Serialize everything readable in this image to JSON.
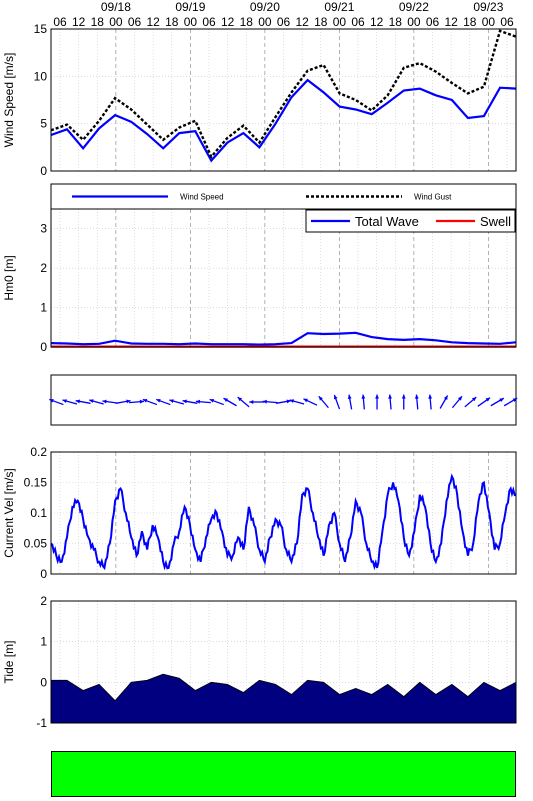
{
  "colors": {
    "wind_speed": "#0000ff",
    "wind_gust": "#000000",
    "total_wave": "#0000ff",
    "swell": "#ff0000",
    "current": "#0000ff",
    "arrow": "#0000ff",
    "tide_fill": "#000080",
    "status": "#00ff00",
    "grid": "#c8c8c8",
    "day_line": "#808080"
  },
  "time_axis": {
    "hour_ticks": [
      "06",
      "12",
      "18",
      "00",
      "06",
      "12",
      "18",
      "00",
      "06",
      "12",
      "18",
      "00",
      "06",
      "12",
      "18",
      "00",
      "06",
      "12",
      "18",
      "00",
      "06",
      "12",
      "18",
      "00",
      "06"
    ],
    "date_labels": [
      "09/18",
      "09/19",
      "09/20",
      "09/21",
      "09/22",
      "09/23"
    ]
  },
  "status": {
    "color": "#00ff00"
  },
  "chart_data": [
    {
      "id": "wind",
      "type": "line",
      "ylabel": "Wind Speed [m/s]",
      "ylim": [
        0,
        15
      ],
      "yticks": [
        "0",
        "5",
        "10",
        "15"
      ],
      "x": [
        0,
        6,
        12,
        18,
        24,
        30,
        36,
        42,
        48,
        54,
        60,
        66,
        72,
        78,
        84,
        90,
        96,
        102,
        108,
        114,
        120,
        126,
        132,
        138,
        144,
        150,
        156,
        162,
        168,
        174
      ],
      "series": [
        {
          "name": "Wind Speed",
          "values": [
            3.8,
            4.4,
            2.4,
            4.5,
            5.9,
            5.2,
            3.9,
            2.4,
            4.0,
            4.2,
            1.1,
            3.0,
            4.0,
            2.5,
            5.0,
            7.8,
            9.6,
            8.3,
            6.8,
            6.5,
            6.0,
            7.2,
            8.5,
            8.7,
            8.0,
            7.5,
            5.6,
            5.8,
            8.8,
            8.7
          ]
        },
        {
          "name": "Wind Gust",
          "values": [
            4.3,
            4.9,
            3.3,
            5.3,
            7.7,
            6.5,
            4.9,
            3.3,
            4.6,
            5.3,
            1.5,
            3.5,
            4.8,
            3.0,
            5.7,
            8.3,
            10.6,
            11.2,
            8.2,
            7.5,
            6.4,
            8.0,
            10.9,
            11.4,
            10.5,
            9.3,
            8.2,
            8.9,
            14.8,
            14.2
          ]
        }
      ],
      "legend": {
        "location": "below",
        "entries": [
          "Wind Speed",
          "Wind Gust"
        ]
      }
    },
    {
      "id": "wave",
      "type": "line",
      "ylabel": "Hm0 [m]",
      "ylim": [
        0,
        3.5
      ],
      "yticks": [
        "0",
        "1",
        "2",
        "3"
      ],
      "x": [
        0,
        6,
        12,
        18,
        24,
        30,
        36,
        42,
        48,
        54,
        60,
        66,
        72,
        78,
        84,
        90,
        96,
        102,
        108,
        114,
        120,
        126,
        132,
        138,
        144,
        150,
        156,
        162,
        168,
        174
      ],
      "series": [
        {
          "name": "Total Wave",
          "values": [
            0.1,
            0.09,
            0.07,
            0.08,
            0.16,
            0.09,
            0.08,
            0.08,
            0.07,
            0.09,
            0.07,
            0.07,
            0.07,
            0.06,
            0.07,
            0.1,
            0.35,
            0.33,
            0.34,
            0.36,
            0.25,
            0.2,
            0.18,
            0.2,
            0.17,
            0.12,
            0.1,
            0.09,
            0.08,
            0.12
          ]
        },
        {
          "name": "Swell",
          "values": [
            0.01,
            0.01,
            0.01,
            0.01,
            0.01,
            0.01,
            0.01,
            0.01,
            0.01,
            0.01,
            0.01,
            0.01,
            0.01,
            0.01,
            0.01,
            0.01,
            0.01,
            0.01,
            0.01,
            0.01,
            0.01,
            0.01,
            0.01,
            0.01,
            0.01,
            0.01,
            0.01,
            0.01,
            0.01,
            0.01
          ]
        }
      ],
      "legend": {
        "location": "top-right",
        "entries": [
          "Total Wave",
          "Swell"
        ]
      }
    },
    {
      "id": "direction",
      "type": "other",
      "x": [
        2,
        7,
        12,
        17,
        22,
        27,
        32,
        37,
        42,
        47,
        52,
        57,
        62,
        67,
        72,
        77,
        82,
        87,
        92,
        97,
        102,
        107,
        112,
        117,
        122,
        127,
        132,
        137,
        142,
        147,
        152,
        157,
        162,
        167,
        172
      ],
      "direction_deg": [
        160,
        165,
        170,
        165,
        172,
        10,
        5,
        160,
        160,
        165,
        170,
        175,
        160,
        150,
        140,
        180,
        175,
        10,
        165,
        155,
        130,
        110,
        100,
        95,
        90,
        95,
        90,
        95,
        95,
        60,
        50,
        40,
        35,
        30,
        30
      ]
    },
    {
      "id": "current",
      "type": "line",
      "ylabel": "Current Vel [m/s]",
      "ylim": [
        0,
        0.2
      ],
      "yticks": [
        "0",
        "0.05",
        "0.1",
        "0.15",
        "0.2"
      ],
      "x": [
        0,
        2,
        4,
        6,
        8,
        10,
        12,
        14,
        16,
        18,
        20,
        22,
        24,
        26,
        28,
        30,
        32,
        34,
        36,
        38,
        40,
        42,
        44,
        46,
        48,
        50,
        52,
        54,
        56,
        58,
        60,
        62,
        64,
        66,
        68,
        70,
        72,
        74,
        76,
        78,
        80,
        82,
        84,
        86,
        88,
        90,
        92,
        94,
        96,
        98,
        100,
        102,
        104,
        106,
        108,
        110,
        112,
        114,
        116,
        118,
        120,
        122,
        124,
        126,
        128,
        130,
        132,
        134,
        136,
        138,
        140,
        142,
        144,
        146,
        148,
        150,
        152,
        154,
        156,
        158,
        160,
        162,
        164,
        166,
        168,
        170,
        172,
        174
      ],
      "series": [
        {
          "name": "Current",
          "values": [
            0.05,
            0.03,
            0.02,
            0.06,
            0.11,
            0.12,
            0.09,
            0.06,
            0.04,
            0.02,
            0.01,
            0.05,
            0.12,
            0.14,
            0.1,
            0.06,
            0.03,
            0.07,
            0.04,
            0.08,
            0.06,
            0.02,
            0.01,
            0.05,
            0.07,
            0.11,
            0.08,
            0.04,
            0.02,
            0.06,
            0.09,
            0.1,
            0.07,
            0.03,
            0.03,
            0.06,
            0.04,
            0.11,
            0.08,
            0.04,
            0.02,
            0.06,
            0.09,
            0.08,
            0.04,
            0.02,
            0.05,
            0.13,
            0.14,
            0.1,
            0.06,
            0.03,
            0.08,
            0.1,
            0.05,
            0.02,
            0.06,
            0.12,
            0.1,
            0.05,
            0.02,
            0.01,
            0.07,
            0.13,
            0.15,
            0.12,
            0.06,
            0.03,
            0.07,
            0.13,
            0.11,
            0.05,
            0.02,
            0.05,
            0.12,
            0.16,
            0.13,
            0.07,
            0.03,
            0.05,
            0.12,
            0.15,
            0.1,
            0.04,
            0.05,
            0.1,
            0.14,
            0.13
          ]
        }
      ]
    },
    {
      "id": "tide",
      "type": "area",
      "ylabel": "Tide [m]",
      "ylim": [
        -1,
        2
      ],
      "yticks": [
        "-1",
        "0",
        "1",
        "2"
      ],
      "x": [
        0,
        6,
        12,
        18,
        24,
        30,
        36,
        42,
        48,
        54,
        60,
        66,
        72,
        78,
        84,
        90,
        96,
        102,
        108,
        114,
        120,
        126,
        132,
        138,
        144,
        150,
        156,
        162,
        168,
        174
      ],
      "series": [
        {
          "name": "Tide",
          "values": [
            0.05,
            0.05,
            -0.2,
            -0.05,
            -0.45,
            0.0,
            0.05,
            0.2,
            0.1,
            -0.2,
            0.0,
            -0.05,
            -0.25,
            0.05,
            -0.05,
            -0.3,
            0.05,
            0.0,
            -0.3,
            -0.15,
            -0.3,
            -0.05,
            -0.35,
            0.0,
            -0.3,
            -0.05,
            -0.35,
            0.0,
            -0.2,
            0.0
          ]
        }
      ]
    }
  ]
}
